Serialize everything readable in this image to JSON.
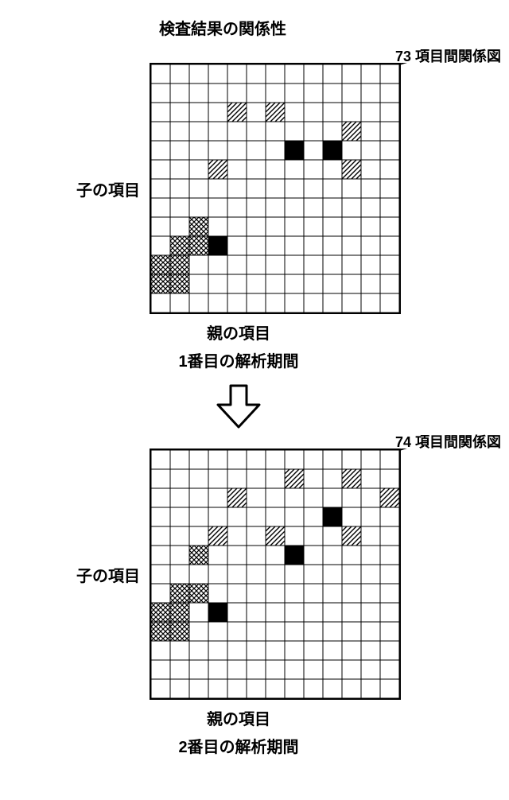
{
  "title": "検査結果の関係性",
  "ylabel": "子の項目",
  "xlabel": "親の項目",
  "callout1": "73 項目間関係図",
  "callout2": "74 項目間関係図",
  "caption1": "1番目の解析期間",
  "caption2": "2番目の解析期間",
  "grid": {
    "rows": 13,
    "cols": 13,
    "cellSize": 24,
    "borderColor": "#000000",
    "bg": "#ffffff"
  },
  "fills": {
    "empty": {
      "type": "none"
    },
    "black": {
      "type": "solid",
      "color": "#000000"
    },
    "hatch": {
      "type": "hatch",
      "stroke": "#000000",
      "bg": "#ffffff"
    },
    "cross": {
      "type": "cross",
      "stroke": "#000000",
      "bg": "#ffffff"
    }
  },
  "matrix1": [
    [
      2,
      4,
      "hatch"
    ],
    [
      2,
      6,
      "hatch"
    ],
    [
      3,
      10,
      "hatch"
    ],
    [
      4,
      7,
      "black"
    ],
    [
      4,
      9,
      "black"
    ],
    [
      5,
      3,
      "hatch"
    ],
    [
      5,
      10,
      "hatch"
    ],
    [
      8,
      2,
      "cross"
    ],
    [
      9,
      1,
      "cross"
    ],
    [
      9,
      2,
      "cross"
    ],
    [
      9,
      3,
      "black"
    ],
    [
      10,
      0,
      "cross"
    ],
    [
      10,
      1,
      "cross"
    ],
    [
      11,
      0,
      "cross"
    ],
    [
      11,
      1,
      "cross"
    ]
  ],
  "matrix2": [
    [
      1,
      7,
      "hatch"
    ],
    [
      1,
      10,
      "hatch"
    ],
    [
      2,
      4,
      "hatch"
    ],
    [
      2,
      12,
      "hatch"
    ],
    [
      3,
      9,
      "black"
    ],
    [
      4,
      3,
      "hatch"
    ],
    [
      4,
      6,
      "hatch"
    ],
    [
      4,
      10,
      "hatch"
    ],
    [
      5,
      2,
      "cross"
    ],
    [
      5,
      7,
      "black"
    ],
    [
      7,
      1,
      "cross"
    ],
    [
      7,
      2,
      "cross"
    ],
    [
      8,
      0,
      "cross"
    ],
    [
      8,
      1,
      "cross"
    ],
    [
      8,
      3,
      "black"
    ],
    [
      9,
      0,
      "cross"
    ],
    [
      9,
      1,
      "cross"
    ]
  ],
  "calloutLine": {
    "color": "#000000",
    "width": 2
  }
}
